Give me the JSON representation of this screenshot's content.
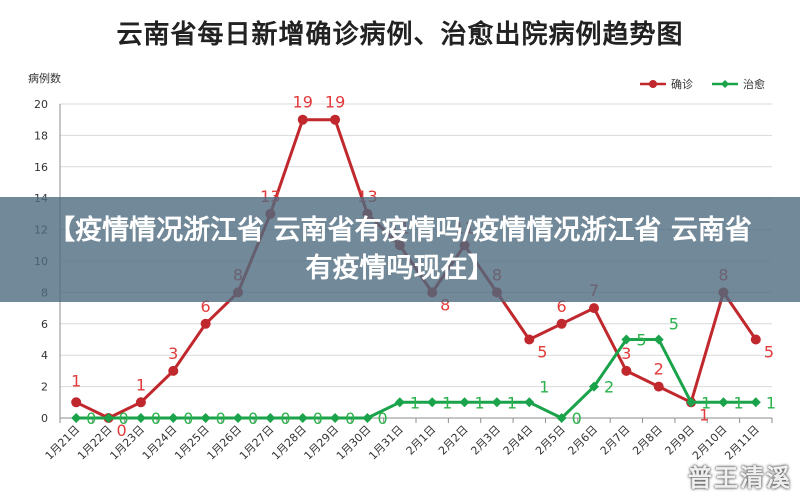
{
  "chart_data": {
    "type": "line",
    "title": "云南省每日新增确诊病例、治愈出院病例趋势图",
    "ylabel": "病例数",
    "xlabel": "",
    "ylim": [
      0,
      20
    ],
    "yticks": [
      0,
      2,
      4,
      6,
      8,
      10,
      12,
      14,
      16,
      18,
      20
    ],
    "grid": true,
    "legend_position": "top-right",
    "categories": [
      "1月21日",
      "1月22日",
      "1月23日",
      "1月24日",
      "1月25日",
      "1月26日",
      "1月27日",
      "1月28日",
      "1月29日",
      "1月30日",
      "1月31日",
      "2月1日",
      "2月2日",
      "2月3日",
      "2月4日",
      "2月5日",
      "2月6日",
      "2月7日",
      "2月8日",
      "2月9日",
      "2月10日",
      "2月11日"
    ],
    "series": [
      {
        "name": "确诊",
        "color": "#c0282d",
        "label_color": "#e23a3a",
        "values": [
          1,
          0,
          1,
          3,
          6,
          8,
          13,
          19,
          19,
          13,
          11,
          8,
          11,
          8,
          5,
          6,
          7,
          3,
          2,
          1,
          8,
          5
        ]
      },
      {
        "name": "治愈",
        "color": "#1aa34a",
        "label_color": "#2bb24c",
        "values": [
          0,
          0,
          0,
          0,
          0,
          0,
          0,
          0,
          0,
          0,
          1,
          1,
          1,
          1,
          1,
          0,
          2,
          5,
          5,
          1,
          1,
          1
        ]
      }
    ]
  },
  "overlay": {
    "banner_text": "【疫情情况浙江省 云南省有疫情吗/疫情情况浙江省 云南省有疫情吗现在】",
    "watermark": "普王清溪"
  }
}
